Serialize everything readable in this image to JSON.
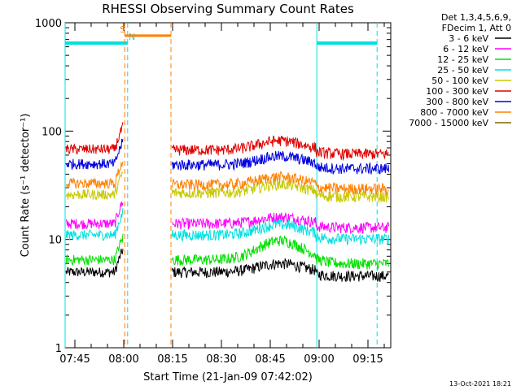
{
  "chart_data": {
    "type": "line",
    "title": "RHESSI Observing Summary Count Rates",
    "xlabel": "Start Time (21-Jan-09 07:42:02)",
    "ylabel": "Count Rate (s⁻¹ detector⁻¹)",
    "yscale": "log",
    "ylim": [
      1,
      1000
    ],
    "xlim_minutes": [
      0,
      100
    ],
    "y_tick_labels": [
      "1",
      "10",
      "100",
      "1000"
    ],
    "x_ticks": [
      {
        "label": "07:45",
        "minute": 3
      },
      {
        "label": "08:00",
        "minute": 18
      },
      {
        "label": "08:15",
        "minute": 33
      },
      {
        "label": "08:30",
        "minute": 48
      },
      {
        "label": "08:45",
        "minute": 63
      },
      {
        "label": "09:00",
        "minute": 78
      },
      {
        "label": "09:15",
        "minute": 93
      }
    ],
    "legend_header": [
      "Det 1,3,4,5,6,9,",
      "FDecim 1, Att 0"
    ],
    "series": [
      {
        "name": "3 - 6 keV",
        "color": "#000000",
        "pre": 5,
        "post": 5,
        "bump": 0.2
      },
      {
        "name": "6 - 12 keV",
        "color": "#ff00ff",
        "pre": 14,
        "post": 14,
        "bump": 0.15
      },
      {
        "name": "12 - 25 keV",
        "color": "#00e000",
        "pre": 6.5,
        "post": 6.5,
        "bump": 0.5
      },
      {
        "name": "25 - 50 keV",
        "color": "#00e0e0",
        "pre": 11,
        "post": 11,
        "bump": 0.25
      },
      {
        "name": "50 - 100 keV",
        "color": "#c8c800",
        "pre": 26,
        "post": 27,
        "bump": 0.2
      },
      {
        "name": "100 - 300 keV",
        "color": "#e00000",
        "pre": 68,
        "post": 67,
        "bump": 0.22
      },
      {
        "name": "300 - 800 keV",
        "color": "#0000e0",
        "pre": 50,
        "post": 49,
        "bump": 0.2
      },
      {
        "name": "800 - 7000 keV",
        "color": "#ff8000",
        "pre": 33,
        "post": 32,
        "bump": 0.18
      },
      {
        "name": "7000 - 15000 keV",
        "color": "#806400",
        "pre": null,
        "post": null,
        "bump": 0
      }
    ],
    "intervals": [
      {
        "label": "N",
        "kind": "night",
        "color": "#00e0e0",
        "level": 650,
        "start": 0,
        "end": 19.2,
        "label_minute": 19.5
      },
      {
        "label": "",
        "kind": "night",
        "color": "#00e0e0",
        "level": 650,
        "start": 77.3,
        "end": 95.8,
        "label_minute": null
      },
      {
        "label": "S",
        "kind": "saa",
        "color": "#ff8000",
        "level": 760,
        "start": 18.3,
        "end": 32.5,
        "label_minute": 16.8
      }
    ],
    "gaps": [
      {
        "start": 18.3,
        "end": 32.5
      }
    ],
    "footer_date": "13-Oct-2021 18:21"
  }
}
